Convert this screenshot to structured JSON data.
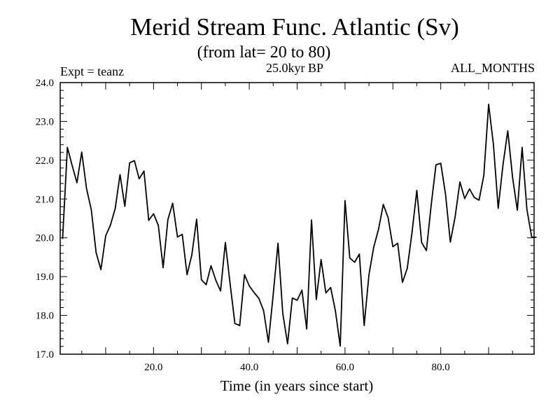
{
  "chart_data": {
    "type": "line",
    "title": "Merid Stream Func. Atlantic (Sv)",
    "subtitle": "(from lat= 20 to 80)",
    "annotation_left": "Expt = teanz",
    "annotation_center": "25.0kyr BP",
    "annotation_right": "ALL_MONTHS",
    "xlabel": "Time (in years since start)",
    "ylabel": "",
    "xlim": [
      0.5,
      99.5
    ],
    "ylim": [
      17.0,
      24.0
    ],
    "x_ticks": [
      20,
      40,
      60,
      80
    ],
    "x_tick_labels": [
      "20.0",
      "40.0",
      "60.0",
      "80.0"
    ],
    "y_ticks": [
      17,
      18,
      19,
      20,
      21,
      22,
      23,
      24
    ],
    "y_tick_labels": [
      "17.0",
      "18.0",
      "19.0",
      "20.0",
      "21.0",
      "22.0",
      "23.0",
      "24.0"
    ],
    "line_color": "#000000",
    "series": [
      {
        "name": "Merid Stream Func. Atlantic",
        "x": [
          1,
          2,
          3,
          4,
          5,
          6,
          7,
          8,
          9,
          10,
          11,
          12,
          13,
          14,
          15,
          16,
          17,
          18,
          19,
          20,
          21,
          22,
          23,
          24,
          25,
          26,
          27,
          28,
          29,
          30,
          31,
          32,
          33,
          34,
          35,
          36,
          37,
          38,
          39,
          40,
          41,
          42,
          43,
          44,
          45,
          46,
          47,
          48,
          49,
          50,
          51,
          52,
          53,
          54,
          55,
          56,
          57,
          58,
          59,
          60,
          61,
          62,
          63,
          64,
          65,
          66,
          67,
          68,
          69,
          70,
          71,
          72,
          73,
          74,
          75,
          76,
          77,
          78,
          79,
          80,
          81,
          82,
          83,
          84,
          85,
          86,
          87,
          88,
          89,
          90,
          91,
          92,
          93,
          94,
          95,
          96,
          97,
          98,
          99,
          100
        ],
        "values": [
          19.97,
          22.33,
          21.86,
          21.42,
          22.21,
          21.27,
          20.72,
          19.62,
          19.18,
          20.05,
          20.33,
          20.76,
          21.63,
          20.81,
          21.93,
          21.99,
          21.52,
          21.72,
          20.45,
          20.62,
          20.32,
          19.23,
          20.47,
          20.89,
          20.02,
          20.09,
          19.05,
          19.56,
          20.48,
          18.92,
          18.79,
          19.28,
          18.91,
          18.63,
          19.88,
          18.81,
          17.79,
          17.74,
          19.05,
          18.76,
          18.59,
          18.44,
          18.12,
          17.31,
          18.54,
          19.86,
          18.05,
          17.27,
          18.45,
          18.39,
          18.65,
          17.65,
          20.46,
          18.41,
          19.44,
          18.58,
          18.72,
          18.11,
          17.21,
          20.96,
          19.48,
          19.37,
          19.58,
          17.74,
          19.05,
          19.76,
          20.22,
          20.86,
          20.52,
          19.77,
          19.86,
          18.85,
          19.21,
          20.14,
          21.22,
          19.88,
          19.67,
          20.84,
          21.88,
          21.92,
          21.12,
          19.89,
          20.54,
          21.44,
          21.01,
          21.26,
          21.04,
          20.97,
          21.61,
          23.44,
          22.41,
          20.76,
          21.88,
          22.76,
          21.56,
          20.71,
          22.33,
          20.73,
          20.02,
          20.01
        ]
      }
    ]
  }
}
